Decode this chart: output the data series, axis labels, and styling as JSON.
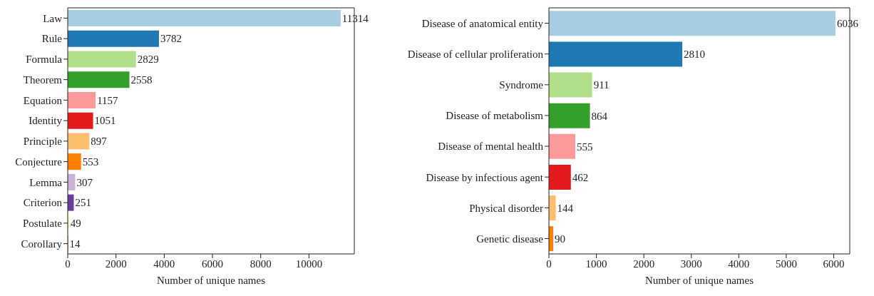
{
  "chart_data": [
    {
      "type": "bar",
      "orientation": "horizontal",
      "xlabel": "Number of unique names",
      "categories": [
        "Law",
        "Rule",
        "Formula",
        "Theorem",
        "Equation",
        "Identity",
        "Principle",
        "Conjecture",
        "Lemma",
        "Criterion",
        "Postulate",
        "Corollary"
      ],
      "values": [
        11314,
        3782,
        2829,
        2558,
        1157,
        1051,
        897,
        553,
        307,
        251,
        49,
        14
      ],
      "colors": [
        "#a6cee3",
        "#1f78b4",
        "#b2df8a",
        "#33a02c",
        "#fb9a99",
        "#e31a1c",
        "#fdbf6f",
        "#ff7f00",
        "#cab2d6",
        "#6a3d9a",
        "#ffff99",
        "#b15928"
      ],
      "xlim": [
        0,
        11880
      ],
      "xticks": [
        0,
        2000,
        4000,
        6000,
        8000,
        10000
      ],
      "data_labels": true,
      "grid": false,
      "legend": false
    },
    {
      "type": "bar",
      "orientation": "horizontal",
      "xlabel": "Number of unique names",
      "categories": [
        "Disease of anatomical entity",
        "Disease of cellular proliferation",
        "Syndrome",
        "Disease of metabolism",
        "Disease of mental health",
        "Disease by infectious agent",
        "Physical disorder",
        "Genetic disease"
      ],
      "values": [
        6036,
        2810,
        911,
        864,
        555,
        462,
        144,
        90
      ],
      "colors": [
        "#a6cee3",
        "#1f78b4",
        "#b2df8a",
        "#33a02c",
        "#fb9a99",
        "#e31a1c",
        "#fdbf6f",
        "#ff7f00"
      ],
      "xlim": [
        0,
        6338
      ],
      "xticks": [
        0,
        1000,
        2000,
        3000,
        4000,
        5000,
        6000
      ],
      "data_labels": true,
      "grid": false,
      "legend": false
    }
  ]
}
